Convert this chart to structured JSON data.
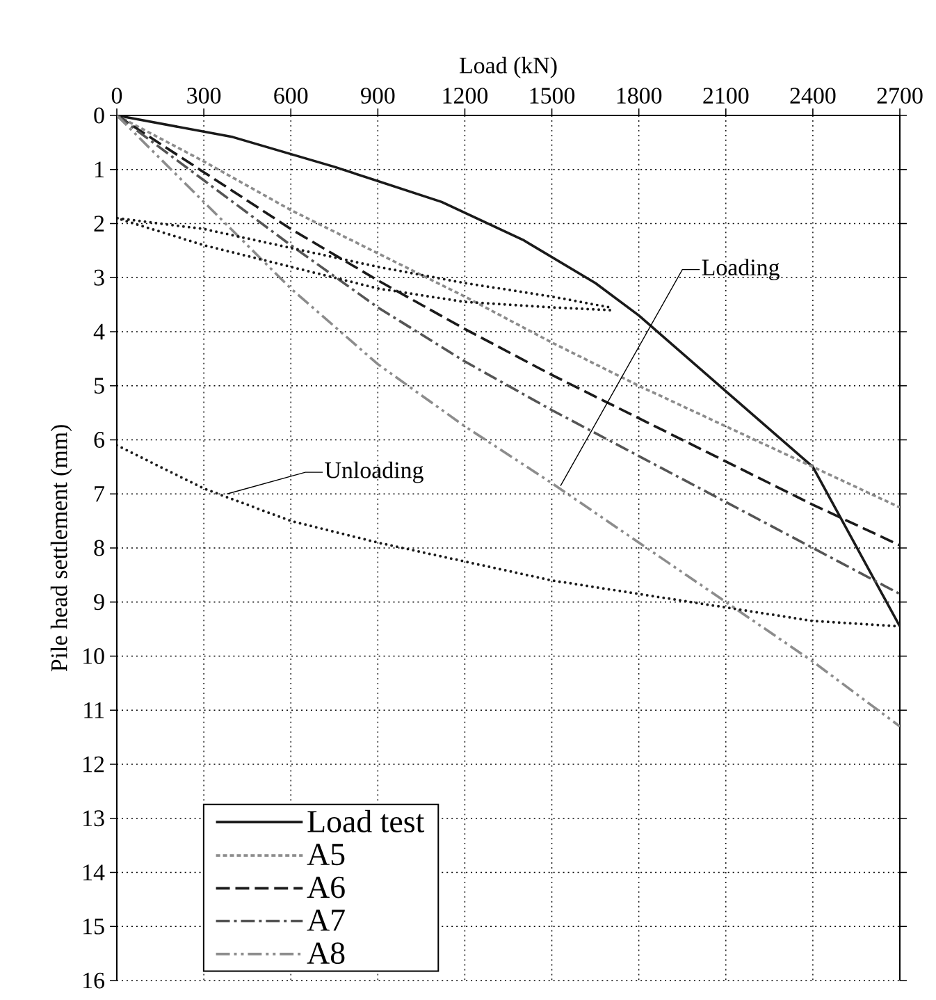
{
  "chart_data": {
    "type": "line",
    "xlabel": "Load (kN)",
    "ylabel": "Pile head settlement (mm)",
    "xlim": [
      0,
      2700
    ],
    "xticks": [
      0,
      300,
      600,
      900,
      1200,
      1500,
      1800,
      2100,
      2400,
      2700
    ],
    "ylim": [
      16,
      0
    ],
    "yticks": [
      0,
      1,
      2,
      3,
      4,
      5,
      6,
      7,
      8,
      9,
      10,
      11,
      12,
      13,
      14,
      15,
      16
    ],
    "grid": true,
    "legend": "bottom left",
    "marker": "none",
    "series": [
      {
        "name": "Load test",
        "color": "#1a1a1a",
        "line_style": "solid",
        "x": [
          0,
          400,
          750,
          1120,
          1400,
          1650,
          1800,
          2100,
          2400,
          2700
        ],
        "values": [
          0,
          0.4,
          0.95,
          1.6,
          2.3,
          3.1,
          3.7,
          5.1,
          6.5,
          9.45
        ]
      },
      {
        "name": "A5",
        "color": "#8c8c8c",
        "line_style": "dashed",
        "x": [
          0,
          300,
          600,
          900,
          1200,
          1500,
          1800,
          2100,
          2400,
          2700
        ],
        "values": [
          0,
          0.85,
          1.75,
          2.55,
          3.35,
          4.2,
          5.0,
          5.75,
          6.5,
          7.25
        ]
      },
      {
        "name": "A6",
        "color": "#1a1a1a",
        "line_style": "longdashed",
        "x": [
          0,
          300,
          600,
          900,
          1200,
          1500,
          1800,
          2100,
          2400,
          2700
        ],
        "values": [
          0,
          1.05,
          2.1,
          3.05,
          3.95,
          4.8,
          5.6,
          6.4,
          7.2,
          7.95
        ]
      },
      {
        "name": "A7",
        "color": "#555555",
        "line_style": "dashdot",
        "x": [
          0,
          300,
          600,
          900,
          1200,
          1500,
          1800,
          2100,
          2400,
          2700
        ],
        "values": [
          0,
          1.2,
          2.4,
          3.55,
          4.55,
          5.45,
          6.3,
          7.15,
          8.0,
          8.85
        ]
      },
      {
        "name": "A8",
        "color": "#8c8c8c",
        "line_style": "dashdotdot",
        "x": [
          0,
          300,
          600,
          900,
          1200,
          1500,
          1800,
          2100,
          2400,
          2700
        ],
        "values": [
          0,
          1.6,
          3.2,
          4.6,
          5.75,
          6.8,
          7.9,
          9.0,
          10.1,
          11.3
        ]
      },
      {
        "color": "#1a1a1a",
        "line_style": "dotted",
        "x": [
          1700,
          1500,
          1200,
          900,
          600,
          300,
          0,
          300,
          600,
          900,
          1200,
          1500,
          1700
        ],
        "values": [
          3.6,
          3.55,
          3.45,
          3.2,
          2.8,
          2.4,
          1.9,
          2.1,
          2.45,
          2.8,
          3.1,
          3.35,
          3.55
        ]
      },
      {
        "color": "#1a1a1a",
        "line_style": "dotted",
        "x": [
          0,
          300,
          600,
          900,
          1200,
          1500,
          1800,
          2100,
          2400,
          2700
        ],
        "values": [
          6.1,
          6.9,
          7.5,
          7.9,
          8.25,
          8.6,
          8.85,
          9.1,
          9.35,
          9.45
        ]
      }
    ],
    "annotations": [
      {
        "text": "Loading",
        "x": 1530,
        "y": 6.85
      },
      {
        "text": "Unloading",
        "x": 380,
        "y": 7.0
      }
    ]
  }
}
